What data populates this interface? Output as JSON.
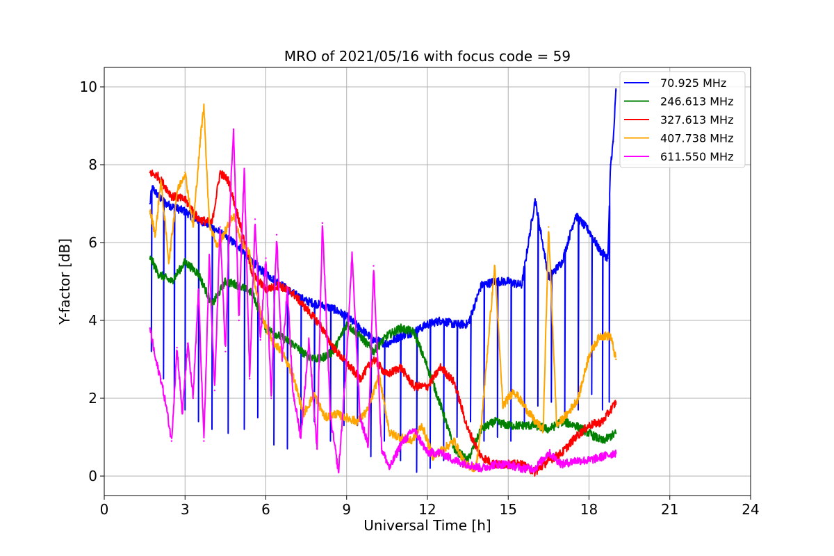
{
  "chart_data": {
    "type": "line",
    "title": "MRO of 2021/05/16 with focus code = 59",
    "xlabel": "Universal Time [h]",
    "ylabel": "Y-factor [dB]",
    "xlim": [
      0,
      24
    ],
    "ylim": [
      -0.5,
      10.5
    ],
    "xticks": [
      0,
      3,
      6,
      9,
      12,
      15,
      18,
      21,
      24
    ],
    "xtick_labels": [
      "0",
      "3",
      "6",
      "9",
      "12",
      "15",
      "18",
      "21",
      "24"
    ],
    "yticks": [
      0,
      2,
      4,
      6,
      8,
      10
    ],
    "ytick_labels": [
      "0",
      "2",
      "4",
      "6",
      "8",
      "10"
    ],
    "grid": true,
    "legend_position": "top-right",
    "series": [
      {
        "name": " 70.925 MHz",
        "color": "#0000ff",
        "x": [
          1.7,
          1.75,
          1.8,
          2.0,
          2.3,
          2.6,
          3.0,
          3.4,
          3.8,
          4.2,
          4.6,
          5.0,
          5.4,
          5.8,
          6.2,
          6.6,
          7.0,
          7.5,
          8.0,
          8.5,
          9.0,
          9.5,
          10.0,
          10.5,
          11.0,
          11.5,
          12.0,
          12.5,
          13.0,
          13.5,
          14.0,
          14.5,
          15.0,
          15.5,
          16.0,
          16.5,
          17.0,
          17.5,
          18.0,
          18.4,
          18.7,
          18.8,
          18.9,
          19.0
        ],
        "y": [
          7.0,
          7.3,
          7.4,
          7.2,
          7.0,
          6.9,
          6.8,
          6.6,
          6.5,
          6.3,
          6.1,
          5.9,
          5.6,
          5.3,
          5.1,
          4.9,
          4.7,
          4.5,
          4.4,
          4.3,
          4.1,
          3.8,
          3.5,
          3.4,
          3.6,
          3.7,
          3.9,
          4.0,
          3.9,
          3.9,
          4.9,
          5.0,
          5.0,
          4.9,
          7.1,
          5.1,
          5.5,
          6.7,
          6.3,
          5.8,
          5.6,
          8.0,
          8.6,
          9.9
        ],
        "dips": [
          [
            1.75,
            3.2
          ],
          [
            2.2,
            2.5
          ],
          [
            2.6,
            2.0
          ],
          [
            3.0,
            1.7
          ],
          [
            3.5,
            1.4
          ],
          [
            4.0,
            1.2
          ],
          [
            4.6,
            1.1
          ],
          [
            5.2,
            1.2
          ],
          [
            5.7,
            1.5
          ],
          [
            6.3,
            0.8
          ],
          [
            6.8,
            0.7
          ],
          [
            7.3,
            1.2
          ],
          [
            7.8,
            1.4
          ],
          [
            8.4,
            0.9
          ],
          [
            8.9,
            1.3
          ],
          [
            9.4,
            1.3
          ],
          [
            9.9,
            0.5
          ],
          [
            10.4,
            0.9
          ],
          [
            11.0,
            0.4
          ],
          [
            11.6,
            0.1
          ],
          [
            12.1,
            0.2
          ],
          [
            12.6,
            0.4
          ],
          [
            13.1,
            1.0
          ],
          [
            13.6,
            1.4
          ],
          [
            14.1,
            0.9
          ],
          [
            14.6,
            1.0
          ],
          [
            15.1,
            0.9
          ],
          [
            15.6,
            1.3
          ],
          [
            16.1,
            1.8
          ],
          [
            16.6,
            1.9
          ],
          [
            17.1,
            1.5
          ],
          [
            17.6,
            1.7
          ],
          [
            18.1,
            2.1
          ],
          [
            18.5,
            1.7
          ],
          [
            18.75,
            1.9
          ]
        ]
      },
      {
        "name": "246.613 MHz",
        "color": "#008000",
        "x": [
          1.7,
          1.8,
          2.0,
          2.5,
          3.0,
          3.5,
          4.0,
          4.5,
          5.0,
          5.5,
          6.0,
          6.5,
          7.0,
          7.5,
          8.0,
          8.5,
          9.0,
          9.5,
          10.0,
          10.5,
          11.0,
          11.5,
          12.0,
          12.5,
          13.0,
          13.5,
          14.0,
          14.5,
          15.0,
          15.5,
          16.0,
          16.5,
          17.0,
          17.5,
          18.0,
          18.5,
          19.0
        ],
        "y": [
          5.6,
          5.5,
          5.2,
          5.0,
          5.5,
          5.2,
          4.4,
          5.0,
          4.9,
          4.7,
          3.8,
          3.6,
          3.4,
          3.1,
          3.0,
          3.2,
          3.9,
          3.6,
          3.2,
          3.6,
          3.8,
          3.7,
          2.8,
          1.8,
          0.7,
          0.4,
          1.2,
          1.4,
          1.3,
          1.3,
          1.3,
          1.2,
          1.4,
          1.3,
          1.1,
          0.9,
          1.1
        ]
      },
      {
        "name": "327.613 MHz",
        "color": "#ff0000",
        "x": [
          1.7,
          2.0,
          2.5,
          3.0,
          3.5,
          4.0,
          4.3,
          4.6,
          5.0,
          5.5,
          6.0,
          6.5,
          7.0,
          7.5,
          8.0,
          8.5,
          9.0,
          9.5,
          10.0,
          10.5,
          11.0,
          11.5,
          12.0,
          12.5,
          13.0,
          13.5,
          14.0,
          14.5,
          15.0,
          15.5,
          16.0,
          16.5,
          17.0,
          17.5,
          18.0,
          18.5,
          19.0
        ],
        "y": [
          7.8,
          7.7,
          7.2,
          7.1,
          6.6,
          6.5,
          7.8,
          7.6,
          6.6,
          5.2,
          4.8,
          4.9,
          4.7,
          4.3,
          3.9,
          3.3,
          2.9,
          2.5,
          3.0,
          2.6,
          2.8,
          2.3,
          2.3,
          2.8,
          2.4,
          1.2,
          0.5,
          0.3,
          0.3,
          0.3,
          0.1,
          0.4,
          0.6,
          1.0,
          1.3,
          1.4,
          1.9
        ]
      },
      {
        "name": "407.738 MHz",
        "color": "#ffa500",
        "x": [
          1.7,
          1.9,
          2.1,
          2.4,
          2.7,
          3.0,
          3.3,
          3.6,
          3.7,
          3.9,
          4.2,
          4.5,
          4.8,
          5.1,
          5.4,
          5.8,
          6.2,
          6.6,
          7.0,
          7.4,
          7.8,
          8.2,
          8.6,
          9.0,
          9.4,
          9.8,
          10.2,
          10.6,
          11.0,
          11.4,
          11.8,
          12.2,
          12.6,
          13.0,
          13.4,
          13.8,
          14.0,
          14.3,
          14.5,
          14.8,
          15.2,
          15.6,
          16.0,
          16.3,
          16.5,
          16.8,
          17.2,
          17.6,
          18.0,
          18.4,
          18.8,
          19.0
        ],
        "y": [
          6.8,
          6.2,
          7.6,
          5.5,
          7.3,
          7.8,
          6.4,
          8.9,
          9.5,
          6.5,
          5.9,
          6.3,
          6.7,
          6.0,
          5.7,
          4.2,
          3.5,
          3.2,
          2.6,
          1.6,
          2.1,
          1.5,
          1.6,
          1.5,
          1.4,
          1.7,
          2.6,
          1.1,
          1.0,
          0.9,
          1.3,
          0.5,
          0.7,
          0.9,
          0.3,
          0.2,
          1.3,
          3.8,
          5.4,
          1.8,
          2.2,
          1.8,
          1.4,
          1.2,
          6.4,
          1.3,
          1.6,
          2.0,
          3.1,
          3.6,
          3.6,
          3.0
        ]
      },
      {
        "name": "611.550 MHz",
        "color": "#ff00ff",
        "x": [
          1.7,
          1.9,
          2.1,
          2.3,
          2.5,
          2.7,
          2.9,
          3.1,
          3.3,
          3.5,
          3.7,
          3.9,
          4.1,
          4.3,
          4.5,
          4.7,
          4.8,
          5.0,
          5.2,
          5.4,
          5.6,
          5.8,
          6.0,
          6.2,
          6.4,
          6.6,
          6.8,
          7.0,
          7.3,
          7.6,
          7.9,
          8.1,
          8.4,
          8.7,
          9.0,
          9.2,
          9.5,
          9.8,
          10.0,
          10.3,
          10.6,
          11.0,
          11.5,
          12.0,
          12.5,
          13.0,
          13.5,
          14.0,
          14.5,
          15.0,
          15.5,
          16.0,
          16.5,
          17.0,
          17.5,
          18.0,
          18.5,
          19.0
        ],
        "y": [
          3.8,
          3.0,
          2.5,
          1.8,
          0.9,
          3.3,
          1.6,
          3.4,
          2.0,
          4.8,
          0.9,
          5.6,
          2.2,
          6.4,
          3.2,
          7.5,
          8.9,
          4.0,
          7.9,
          2.5,
          6.6,
          3.5,
          5.6,
          2.0,
          6.2,
          3.0,
          4.8,
          2.2,
          1.0,
          3.5,
          0.7,
          6.5,
          1.5,
          0.1,
          3.0,
          5.7,
          1.5,
          0.8,
          5.4,
          0.7,
          0.2,
          0.8,
          1.2,
          0.6,
          0.6,
          0.4,
          0.3,
          0.2,
          0.3,
          0.3,
          0.2,
          0.2,
          0.6,
          0.3,
          0.4,
          0.4,
          0.5,
          0.6
        ]
      }
    ]
  }
}
